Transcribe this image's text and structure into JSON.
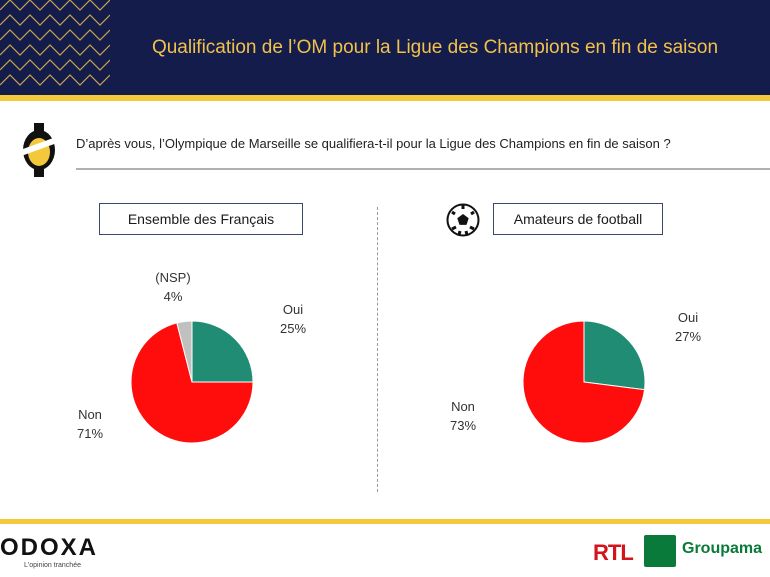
{
  "header": {
    "title": "Qualification de l’OM pour la Ligue des Champions en fin de saison"
  },
  "question": {
    "text": "D’après vous, l’Olympique de Marseille se qualifiera-t-il pour la Ligue des Champions en fin de saison ?"
  },
  "colors": {
    "header_bg": "#141c4c",
    "title": "#f2c14a",
    "accent_bar": "#f3c83a",
    "oui": "#1f8c73",
    "non": "#ff0d0d",
    "nsp": "#c0c0c0"
  },
  "chart_data": [
    {
      "type": "pie",
      "title": "Ensemble des Français",
      "categories": [
        "Oui",
        "Non",
        "(NSP)"
      ],
      "values": [
        25,
        71,
        4
      ],
      "labels": [
        "25%",
        "71%",
        "4%"
      ]
    },
    {
      "type": "pie",
      "title": "Amateurs de football",
      "categories": [
        "Oui",
        "Non"
      ],
      "values": [
        27,
        73
      ],
      "labels": [
        "27%",
        "73%"
      ]
    }
  ],
  "footer": {
    "brand": "ODOXA",
    "tagline": "L'opinion tranchée",
    "partner1": "RTL",
    "partner2": "Groupama"
  },
  "icons": {
    "header_pattern": "chevron-pattern",
    "question": "coin-icon",
    "football": "football-icon"
  }
}
